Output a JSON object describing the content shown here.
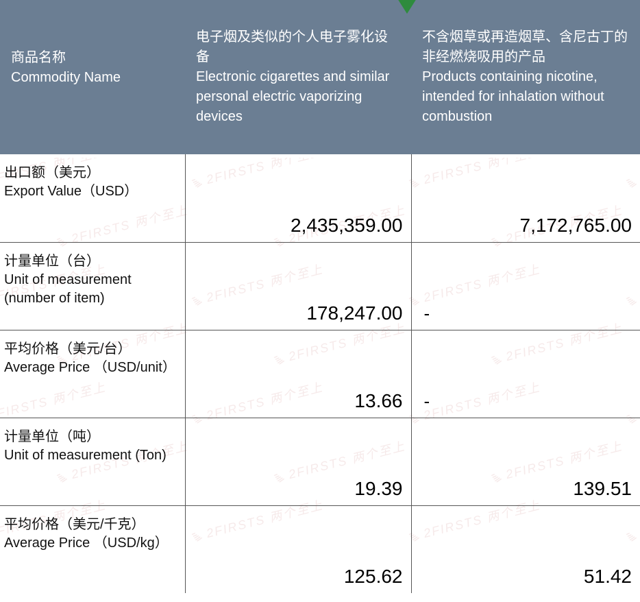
{
  "header": {
    "col1_cn": "商品名称",
    "col1_en": "Commodity Name",
    "col2_cn": "电子烟及类似的个人电子雾化设备",
    "col2_en": "Electronic cigarettes and similar personal electric vaporizing devices",
    "col3_cn": "不含烟草或再造烟草、含尼古丁的非经燃烧吸用的产品",
    "col3_en": "Products containing nicotine, intended for inhalation without combustion"
  },
  "rows": [
    {
      "label_cn": "出口额（美元）",
      "label_en": " Export Value（USD）",
      "c2": "2,435,359.00",
      "c3": "7,172,765.00",
      "c3_dash": false
    },
    {
      "label_cn": "计量单位（台）",
      "label_en": "Unit of measurement (number of item)",
      "c2": "178,247.00",
      "c3": "-",
      "c3_dash": true
    },
    {
      "label_cn": "平均价格（美元/台）",
      "label_en": "Average Price （USD/unit）",
      "c2": "13.66",
      "c3": "-",
      "c3_dash": true
    },
    {
      "label_cn": "计量单位（吨）",
      "label_en": "Unit of measurement (Ton)",
      "c2": "19.39",
      "c3": "139.51",
      "c3_dash": false
    },
    {
      "label_cn": "平均价格（美元/千克）",
      "label_en": "Average Price （USD/kg）",
      "c2": "125.62",
      "c3": "51.42",
      "c3_dash": false
    }
  ],
  "watermark": {
    "text": "2FIRSTS 两个至上",
    "color": "#e8c5c5",
    "opacity": 0.35
  },
  "style": {
    "header_bg": "#6b7e93",
    "header_text": "#ffffff",
    "border_color": "#555555",
    "value_fontsize": 28,
    "label_fontsize": 20,
    "triangle_color": "#2e8b3d"
  }
}
